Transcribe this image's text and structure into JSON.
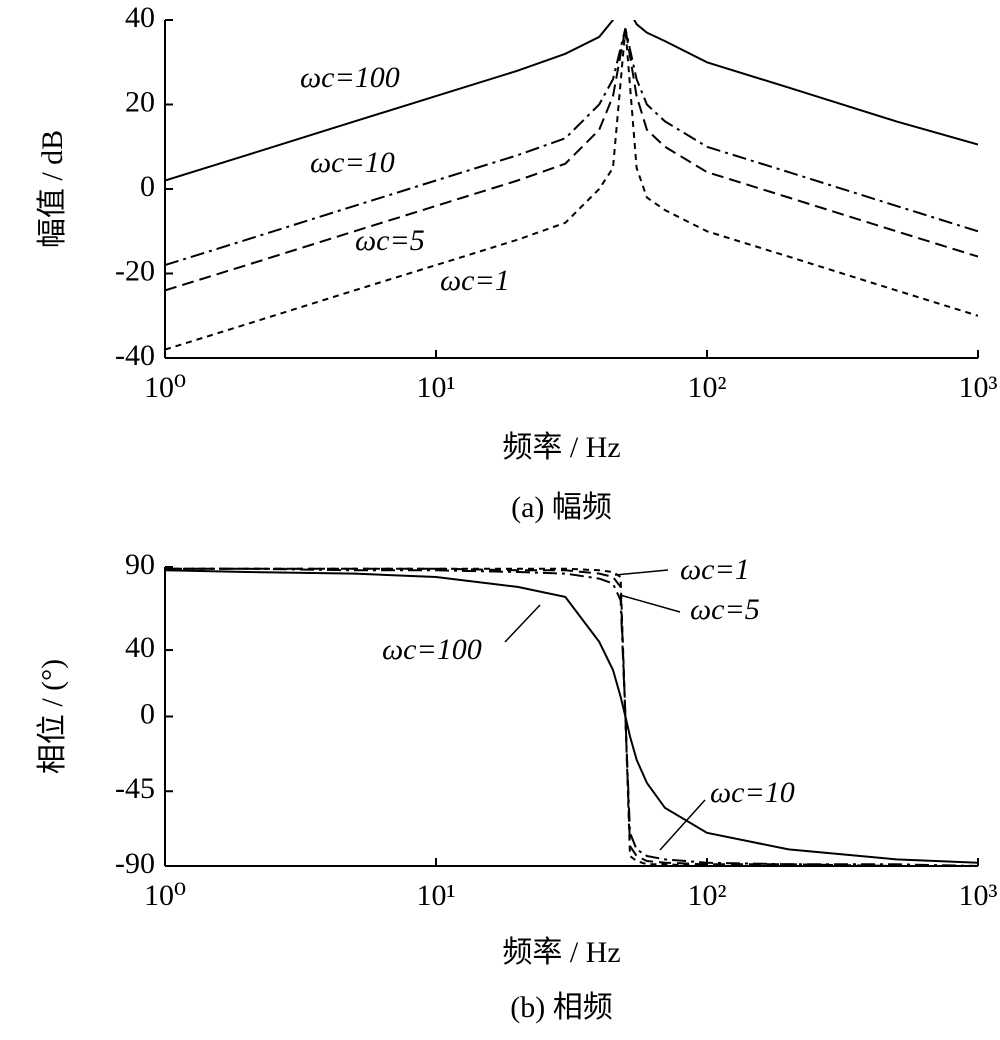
{
  "chart_data": [
    {
      "type": "line",
      "xscale": "log",
      "caption": "(a)  幅频",
      "xlabel": "频率 / Hz",
      "ylabel": "幅值 / dB",
      "xlim": [
        1,
        1000
      ],
      "xticks": [
        {
          "value": 1,
          "label": "10⁰"
        },
        {
          "value": 10,
          "label": "10¹"
        },
        {
          "value": 100,
          "label": "10²"
        },
        {
          "value": 1000,
          "label": "10³"
        }
      ],
      "ylim": [
        -40,
        40
      ],
      "yticks": [
        -40,
        -20,
        0,
        20,
        40
      ],
      "x": [
        1,
        2,
        5,
        10,
        20,
        30,
        40,
        45,
        50,
        55,
        60,
        70,
        100,
        200,
        500,
        1000
      ],
      "series": [
        {
          "name": "ωc=100",
          "color": "#000000",
          "dash": "solid",
          "values": [
            2,
            8,
            16,
            22,
            28,
            32,
            36,
            40,
            44,
            39,
            37,
            35,
            30,
            24,
            16,
            10.5
          ]
        },
        {
          "name": "ωc=10",
          "color": "#000000",
          "dash": "dashdot",
          "values": [
            -18,
            -12,
            -4,
            2,
            8,
            12,
            20,
            26,
            38,
            26,
            20,
            16,
            10,
            4,
            -4,
            -10
          ]
        },
        {
          "name": "ωc=5",
          "color": "#000000",
          "dash": "dashed",
          "values": [
            -24,
            -18,
            -10,
            -4,
            2,
            6,
            14,
            22,
            38,
            22,
            14,
            10,
            4,
            -2,
            -10,
            -16
          ]
        },
        {
          "name": "ωc=1",
          "color": "#000000",
          "dash": "dotted",
          "values": [
            -38,
            -32,
            -24,
            -18,
            -12,
            -8,
            0,
            5,
            38,
            5,
            -2,
            -5,
            -10,
            -16,
            -24,
            -30
          ]
        }
      ]
    },
    {
      "type": "line",
      "xscale": "log",
      "caption": "(b)  相频",
      "xlabel": "频率 / Hz",
      "ylabel": "相位 / (°)",
      "xlim": [
        1,
        1000
      ],
      "xticks": [
        {
          "value": 1,
          "label": "10⁰"
        },
        {
          "value": 10,
          "label": "10¹"
        },
        {
          "value": 100,
          "label": "10²"
        },
        {
          "value": 1000,
          "label": "10³"
        }
      ],
      "ylim": [
        -90,
        90
      ],
      "yticks": [
        90,
        40,
        0,
        -45,
        -90
      ],
      "x": [
        1,
        2,
        5,
        10,
        20,
        30,
        40,
        45,
        48,
        50,
        52,
        55,
        60,
        70,
        100,
        200,
        500,
        1000
      ],
      "series": [
        {
          "name": "ωc=100",
          "color": "#000000",
          "dash": "solid",
          "values": [
            88,
            87,
            86,
            84,
            78,
            72,
            45,
            28,
            12,
            0,
            -12,
            -26,
            -40,
            -55,
            -70,
            -80,
            -86,
            -88
          ]
        },
        {
          "name": "ωc=10",
          "color": "#000000",
          "dash": "dashdot",
          "values": [
            89,
            89,
            88,
            88,
            87,
            86,
            83,
            80,
            70,
            0,
            -70,
            -80,
            -84,
            -86,
            -88,
            -89,
            -89,
            -90
          ]
        },
        {
          "name": "ωc=5",
          "color": "#000000",
          "dash": "dashed",
          "values": [
            89,
            89,
            89,
            89,
            88,
            88,
            86,
            84,
            78,
            0,
            -78,
            -84,
            -87,
            -88,
            -89,
            -89,
            -90,
            -90
          ]
        },
        {
          "name": "ωc=1",
          "color": "#000000",
          "dash": "dotted",
          "values": [
            89,
            89,
            89,
            89,
            89,
            89,
            88,
            87,
            84,
            0,
            -84,
            -87,
            -89,
            -89,
            -90,
            -90,
            -90,
            -90
          ]
        }
      ]
    }
  ]
}
